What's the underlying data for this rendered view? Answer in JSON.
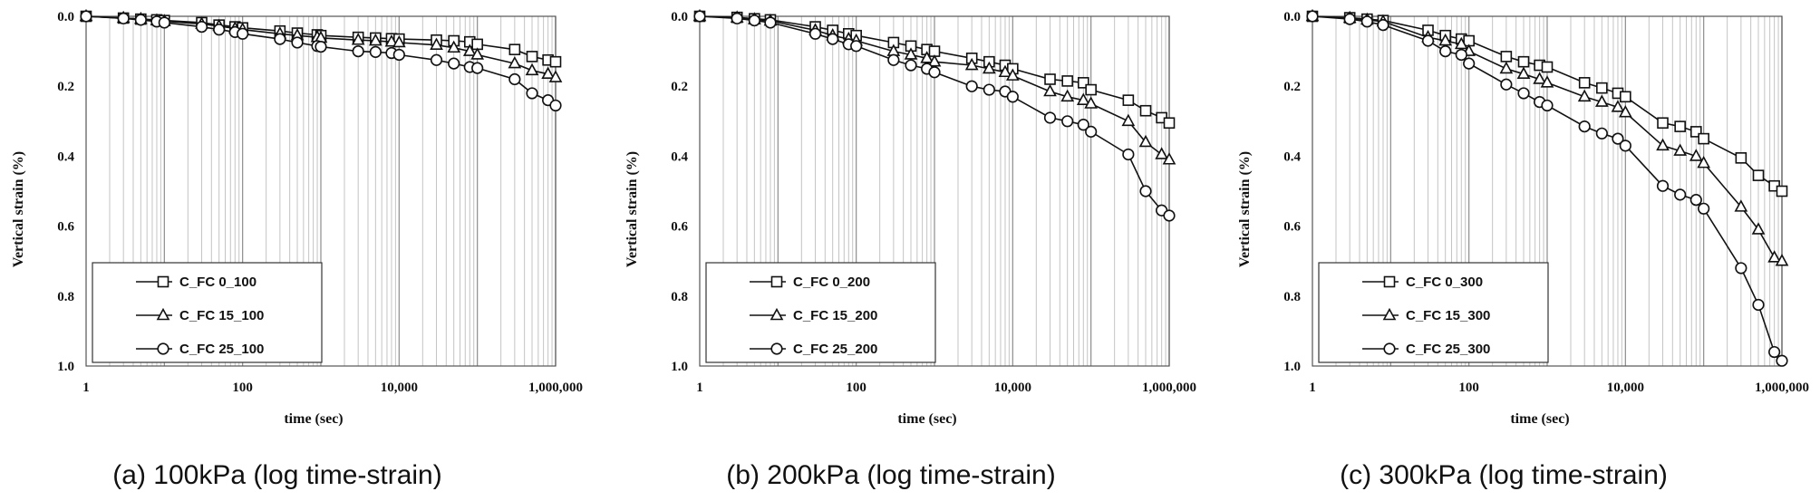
{
  "chart_data": [
    {
      "type": "line",
      "caption": "(a) 100kPa (log time-strain)",
      "xlabel": "time (sec)",
      "ylabel": "Vertical strain (%)",
      "x_scale": "log",
      "xlim": [
        1,
        1000000
      ],
      "ylim": [
        0,
        1.0
      ],
      "y_inverted": true,
      "x_tick_labels": [
        "1",
        "100",
        "10,000",
        "1,000,000"
      ],
      "y_tick_labels": [
        "0.0",
        "0.2",
        "0.4",
        "0.6",
        "0.8",
        "1.0"
      ],
      "grid": "vertical log gridlines",
      "legend_position": "bottom-left",
      "x": [
        1,
        3,
        5,
        8,
        10,
        30,
        50,
        80,
        100,
        300,
        500,
        900,
        1000,
        3000,
        5000,
        8000,
        10000,
        30000,
        50000,
        80000,
        100000,
        300000,
        500000,
        800000,
        1000000
      ],
      "series": [
        {
          "name": "C_FC 0_100",
          "marker": "square",
          "values": [
            0,
            0.005,
            0.008,
            0.01,
            0.012,
            0.018,
            0.025,
            0.03,
            0.033,
            0.042,
            0.048,
            0.053,
            0.055,
            0.06,
            0.062,
            0.064,
            0.065,
            0.068,
            0.07,
            0.073,
            0.08,
            0.095,
            0.115,
            0.125,
            0.13
          ]
        },
        {
          "name": "C_FC 15_100",
          "marker": "triangle",
          "values": [
            0,
            0.005,
            0.008,
            0.012,
            0.014,
            0.022,
            0.028,
            0.035,
            0.038,
            0.05,
            0.055,
            0.06,
            0.062,
            0.068,
            0.07,
            0.073,
            0.075,
            0.082,
            0.09,
            0.1,
            0.11,
            0.135,
            0.155,
            0.165,
            0.175
          ]
        },
        {
          "name": "C_FC 25_100",
          "marker": "circle",
          "values": [
            0,
            0.006,
            0.01,
            0.015,
            0.018,
            0.03,
            0.038,
            0.045,
            0.05,
            0.065,
            0.075,
            0.085,
            0.087,
            0.1,
            0.102,
            0.105,
            0.11,
            0.125,
            0.135,
            0.145,
            0.148,
            0.18,
            0.22,
            0.24,
            0.255
          ]
        }
      ]
    },
    {
      "type": "line",
      "caption": "(b) 200kPa (log time-strain)",
      "xlabel": "time (sec)",
      "ylabel": "Vertical strain (%)",
      "x_scale": "log",
      "xlim": [
        1,
        1000000
      ],
      "ylim": [
        0,
        1.0
      ],
      "y_inverted": true,
      "x_tick_labels": [
        "1",
        "100",
        "10,000",
        "1,000,000"
      ],
      "y_tick_labels": [
        "0.0",
        "0.2",
        "0.4",
        "0.6",
        "0.8",
        "1.0"
      ],
      "grid": "vertical log gridlines",
      "legend_position": "bottom-left",
      "x": [
        1,
        3,
        5,
        8,
        30,
        50,
        80,
        100,
        300,
        500,
        800,
        1000,
        3000,
        5000,
        8000,
        10000,
        30000,
        50000,
        80000,
        100000,
        300000,
        500000,
        800000,
        1000000
      ],
      "series": [
        {
          "name": "C_FC 0_200",
          "marker": "square",
          "values": [
            0,
            0.003,
            0.007,
            0.01,
            0.03,
            0.04,
            0.05,
            0.055,
            0.075,
            0.085,
            0.095,
            0.1,
            0.12,
            0.13,
            0.14,
            0.15,
            0.18,
            0.185,
            0.19,
            0.21,
            0.24,
            0.27,
            0.29,
            0.305
          ]
        },
        {
          "name": "C_FC 15_200",
          "marker": "triangle",
          "values": [
            0,
            0.004,
            0.009,
            0.013,
            0.04,
            0.055,
            0.065,
            0.07,
            0.1,
            0.11,
            0.12,
            0.13,
            0.14,
            0.15,
            0.16,
            0.17,
            0.215,
            0.23,
            0.24,
            0.25,
            0.3,
            0.36,
            0.395,
            0.41
          ]
        },
        {
          "name": "C_FC 25_200",
          "marker": "circle",
          "values": [
            0,
            0.006,
            0.012,
            0.018,
            0.05,
            0.065,
            0.08,
            0.085,
            0.125,
            0.14,
            0.15,
            0.16,
            0.2,
            0.21,
            0.215,
            0.23,
            0.29,
            0.3,
            0.31,
            0.33,
            0.395,
            0.5,
            0.555,
            0.57
          ]
        }
      ]
    },
    {
      "type": "line",
      "caption": "(c) 300kPa (log time-strain)",
      "xlabel": "time (sec)",
      "ylabel": "Vertical strain (%)",
      "x_scale": "log",
      "xlim": [
        1,
        1000000
      ],
      "ylim": [
        0,
        1.0
      ],
      "y_inverted": true,
      "x_tick_labels": [
        "1",
        "100",
        "10,000",
        "1,000,000"
      ],
      "y_tick_labels": [
        "0.0",
        "0.2",
        "0.4",
        "0.6",
        "0.8",
        "1.0"
      ],
      "grid": "vertical log gridlines",
      "legend_position": "bottom-left",
      "x": [
        1,
        3,
        5,
        8,
        30,
        50,
        80,
        100,
        300,
        500,
        800,
        1000,
        3000,
        5000,
        8000,
        10000,
        30000,
        50000,
        80000,
        100000,
        300000,
        500000,
        800000,
        1000000
      ],
      "series": [
        {
          "name": "C_FC 0_300",
          "marker": "square",
          "values": [
            0,
            0.004,
            0.008,
            0.012,
            0.04,
            0.055,
            0.065,
            0.07,
            0.115,
            0.13,
            0.14,
            0.145,
            0.19,
            0.205,
            0.22,
            0.23,
            0.305,
            0.315,
            0.33,
            0.35,
            0.405,
            0.455,
            0.485,
            0.5
          ]
        },
        {
          "name": "C_FC 15_300",
          "marker": "triangle",
          "values": [
            0,
            0.005,
            0.01,
            0.015,
            0.06,
            0.07,
            0.08,
            0.1,
            0.15,
            0.165,
            0.18,
            0.19,
            0.23,
            0.245,
            0.26,
            0.275,
            0.37,
            0.385,
            0.4,
            0.42,
            0.545,
            0.61,
            0.69,
            0.7
          ]
        },
        {
          "name": "C_FC 25_300",
          "marker": "circle",
          "values": [
            0,
            0.008,
            0.015,
            0.025,
            0.07,
            0.1,
            0.11,
            0.135,
            0.195,
            0.22,
            0.245,
            0.255,
            0.315,
            0.335,
            0.35,
            0.37,
            0.485,
            0.51,
            0.525,
            0.55,
            0.72,
            0.825,
            0.96,
            0.985
          ]
        }
      ]
    }
  ]
}
